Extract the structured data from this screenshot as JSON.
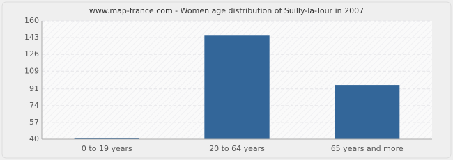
{
  "chart_data": {
    "type": "bar",
    "title": "www.map-france.com - Women age distribution of Suilly-la-Tour in 2007",
    "categories": [
      "0 to 19 years",
      "20 to 64 years",
      "65 years and more"
    ],
    "values": [
      41,
      145,
      95
    ],
    "color": "#336699",
    "ylim": [
      40,
      160
    ],
    "yticks": [
      40,
      57,
      74,
      91,
      109,
      126,
      143,
      160
    ],
    "grid": true
  }
}
